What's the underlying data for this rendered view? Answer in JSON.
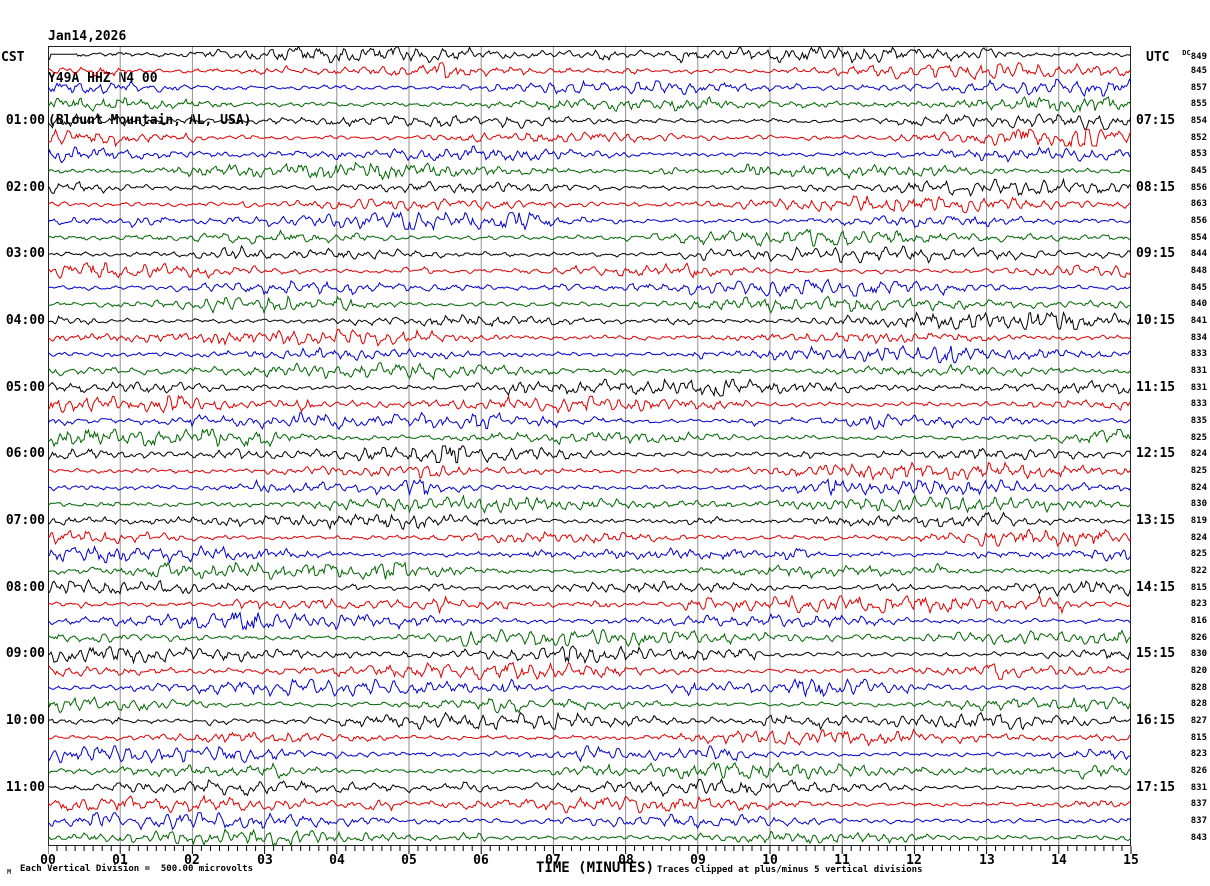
{
  "title": {
    "line1": "Jan14,2026",
    "line2": "Y49A HHZ N4 00",
    "line3": "(Blount Mountain, AL, USA)"
  },
  "left_axis": {
    "header": "CST"
  },
  "right_axis": {
    "header": "UTC",
    "dc_prefix": "DC"
  },
  "x_axis": {
    "label": "TIME (MINUTES)",
    "ticks": [
      "00",
      "01",
      "02",
      "03",
      "04",
      "05",
      "06",
      "07",
      "08",
      "09",
      "10",
      "11",
      "12",
      "13",
      "14",
      "15"
    ],
    "minutes_per_line": 15,
    "minor_per_major": 8
  },
  "footer": {
    "watermark": "M",
    "scale_note": "Each Vertical Division =  500.00 microvolts",
    "clip_note": "Traces clipped at plus/minus 5 vertical divisions"
  },
  "colors": {
    "trace_cycle": [
      "#000000",
      "#dd0000",
      "#0000cc",
      "#006600"
    ],
    "grid": "#909090",
    "border": "#222222",
    "text": "#000000",
    "background": "#ffffff"
  },
  "rows": [
    {
      "dc": "849"
    },
    {
      "dc": "845"
    },
    {
      "dc": "857"
    },
    {
      "dc": "855"
    },
    {
      "dc": "854",
      "cst": "01:00",
      "utc": "07:15"
    },
    {
      "dc": "852"
    },
    {
      "dc": "853"
    },
    {
      "dc": "845"
    },
    {
      "dc": "856",
      "cst": "02:00",
      "utc": "08:15"
    },
    {
      "dc": "863"
    },
    {
      "dc": "856"
    },
    {
      "dc": "854"
    },
    {
      "dc": "844",
      "cst": "03:00",
      "utc": "09:15"
    },
    {
      "dc": "848"
    },
    {
      "dc": "845"
    },
    {
      "dc": "840"
    },
    {
      "dc": "841",
      "cst": "04:00",
      "utc": "10:15"
    },
    {
      "dc": "834"
    },
    {
      "dc": "833"
    },
    {
      "dc": "831"
    },
    {
      "dc": "831",
      "cst": "05:00",
      "utc": "11:15"
    },
    {
      "dc": "833"
    },
    {
      "dc": "835"
    },
    {
      "dc": "825"
    },
    {
      "dc": "824",
      "cst": "06:00",
      "utc": "12:15"
    },
    {
      "dc": "825"
    },
    {
      "dc": "824"
    },
    {
      "dc": "830"
    },
    {
      "dc": "819",
      "cst": "07:00",
      "utc": "13:15"
    },
    {
      "dc": "824"
    },
    {
      "dc": "825"
    },
    {
      "dc": "822"
    },
    {
      "dc": "815",
      "cst": "08:00",
      "utc": "14:15"
    },
    {
      "dc": "823"
    },
    {
      "dc": "816"
    },
    {
      "dc": "826"
    },
    {
      "dc": "830",
      "cst": "09:00",
      "utc": "15:15"
    },
    {
      "dc": "820"
    },
    {
      "dc": "828"
    },
    {
      "dc": "828"
    },
    {
      "dc": "827",
      "cst": "10:00",
      "utc": "16:15"
    },
    {
      "dc": "815"
    },
    {
      "dc": "823"
    },
    {
      "dc": "826"
    },
    {
      "dc": "831",
      "cst": "11:00",
      "utc": "17:15"
    },
    {
      "dc": "837"
    },
    {
      "dc": "837"
    },
    {
      "dc": "843"
    }
  ],
  "chart_data": {
    "type": "line",
    "subtype": "helicorder-seismogram",
    "title": "Y49A HHZ N4 00 (Blount Mountain, AL, USA) Jan14,2026",
    "xlabel": "TIME (MINUTES)",
    "x_range": [
      0,
      15
    ],
    "x_ticks": [
      "00",
      "01",
      "02",
      "03",
      "04",
      "05",
      "06",
      "07",
      "08",
      "09",
      "10",
      "11",
      "12",
      "13",
      "14",
      "15"
    ],
    "num_rows": 48,
    "minutes_per_row": 15,
    "left_time_labels_cst": [
      "01:00",
      "02:00",
      "03:00",
      "04:00",
      "05:00",
      "06:00",
      "07:00",
      "08:00",
      "09:00",
      "10:00",
      "11:00"
    ],
    "right_time_labels_utc": [
      "07:15",
      "08:15",
      "09:15",
      "10:15",
      "11:15",
      "12:15",
      "13:15",
      "14:15",
      "15:15",
      "16:15",
      "17:15"
    ],
    "dc_offsets": [
      849,
      845,
      857,
      855,
      854,
      852,
      853,
      845,
      856,
      863,
      856,
      854,
      844,
      848,
      845,
      840,
      841,
      834,
      833,
      831,
      831,
      833,
      835,
      825,
      824,
      825,
      824,
      830,
      819,
      824,
      825,
      822,
      815,
      823,
      816,
      826,
      830,
      820,
      828,
      828,
      827,
      815,
      823,
      826,
      831,
      837,
      837,
      843
    ],
    "trace_color_cycle": [
      "black",
      "red",
      "blue",
      "green"
    ],
    "scale_note": "Each Vertical Division = 500.00 microvolts",
    "clip_note": "Traces clipped at plus/minus 5 vertical divisions",
    "waveform_note": "continuous background seismic noise traces; individual sample values not readable from image",
    "grid": "vertical gridlines at each minute",
    "legend_position": "none"
  }
}
